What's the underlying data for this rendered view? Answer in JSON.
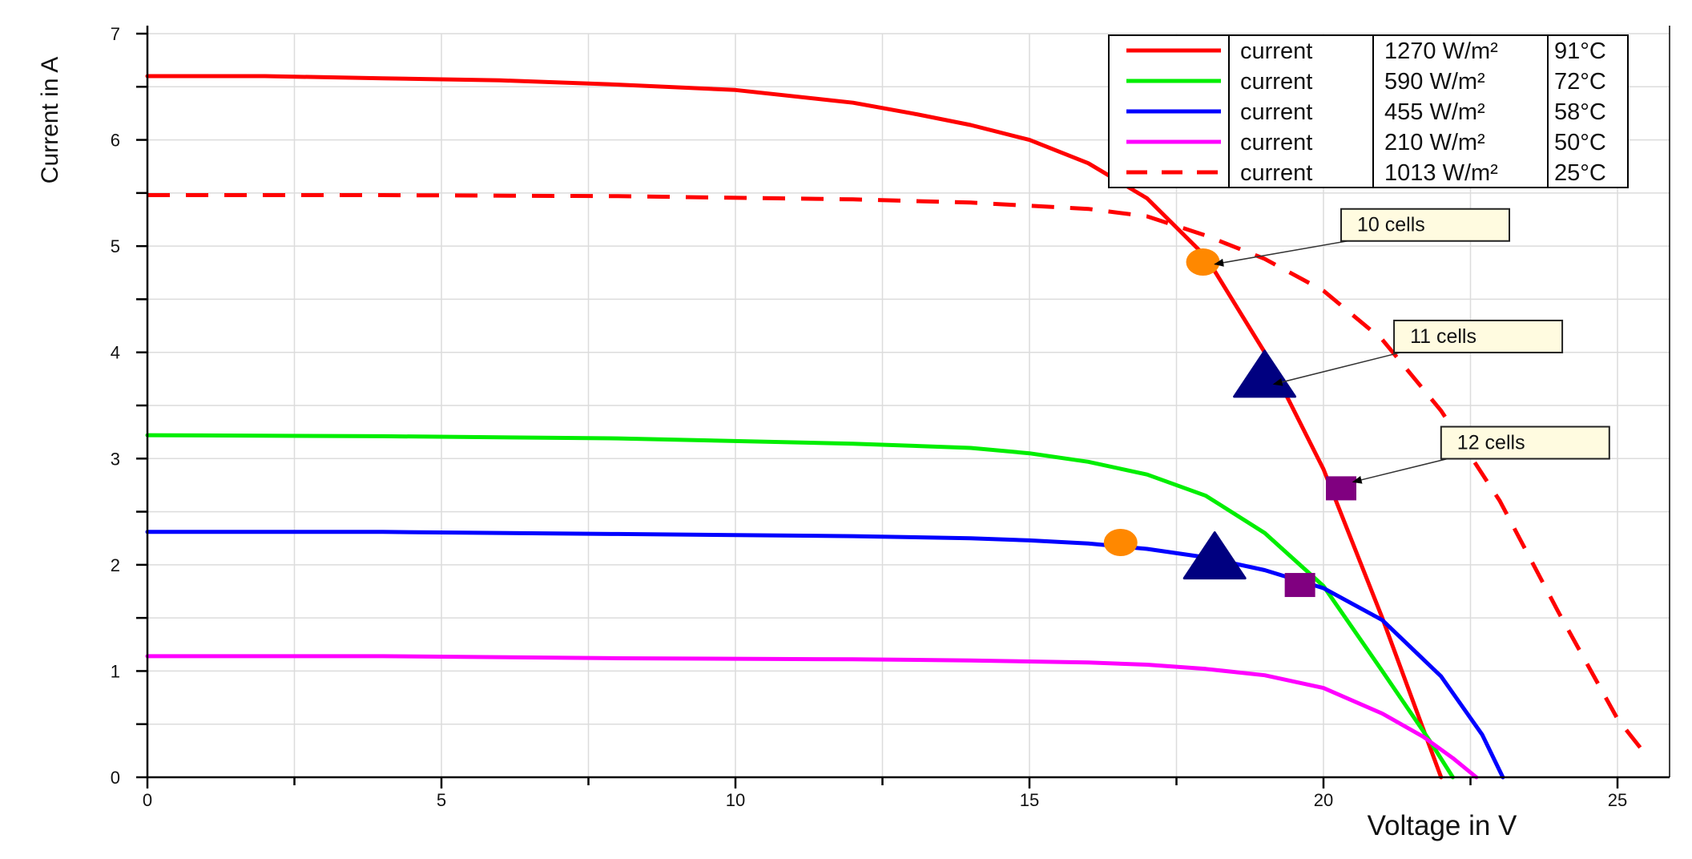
{
  "chart_data": {
    "type": "line",
    "xlabel": "Voltage in V",
    "ylabel": "Current in A",
    "xlim": [
      0,
      26
    ],
    "ylim": [
      0,
      7
    ],
    "x_ticks": [
      0,
      5,
      10,
      15,
      20,
      25
    ],
    "y_ticks": [
      0,
      1,
      2,
      3,
      4,
      5,
      6,
      7
    ],
    "grid": true,
    "legend_position": "top-right",
    "series": [
      {
        "name": "current",
        "irradiance": "1270 W/m²",
        "temperature": "91°C",
        "color": "#ff0000",
        "dash": "solid",
        "x": [
          0,
          2,
          4,
          6,
          8,
          10,
          12,
          13,
          14,
          15,
          16,
          17,
          18,
          19,
          20,
          21,
          21.6,
          22
        ],
        "y": [
          6.6,
          6.6,
          6.58,
          6.56,
          6.52,
          6.47,
          6.35,
          6.25,
          6.14,
          6.0,
          5.78,
          5.45,
          4.9,
          4.0,
          2.9,
          1.5,
          0.6,
          0.0
        ]
      },
      {
        "name": "current",
        "irradiance": "590 W/m²",
        "temperature": "72°C",
        "color": "#00ee00",
        "dash": "solid",
        "x": [
          0,
          4,
          8,
          12,
          14,
          15,
          16,
          17,
          18,
          19,
          20,
          21,
          21.8,
          22.2
        ],
        "y": [
          3.22,
          3.21,
          3.19,
          3.14,
          3.1,
          3.05,
          2.97,
          2.85,
          2.65,
          2.3,
          1.8,
          1.0,
          0.35,
          0.0
        ]
      },
      {
        "name": "current",
        "irradiance": "455 W/m²",
        "temperature": "58°C",
        "color": "#0000ff",
        "dash": "solid",
        "x": [
          0,
          4,
          8,
          12,
          14,
          15,
          16,
          17,
          18,
          19,
          20,
          21,
          22,
          22.7,
          23.05
        ],
        "y": [
          2.31,
          2.31,
          2.29,
          2.27,
          2.25,
          2.23,
          2.2,
          2.15,
          2.07,
          1.95,
          1.78,
          1.48,
          0.95,
          0.4,
          0.0
        ]
      },
      {
        "name": "current",
        "irradiance": "210 W/m²",
        "temperature": "50°C",
        "color": "#ff00ff",
        "dash": "solid",
        "x": [
          0,
          4,
          8,
          12,
          14,
          16,
          17,
          18,
          19,
          20,
          21,
          21.7,
          22.2,
          22.6
        ],
        "y": [
          1.14,
          1.14,
          1.12,
          1.11,
          1.1,
          1.08,
          1.06,
          1.02,
          0.96,
          0.84,
          0.6,
          0.38,
          0.18,
          0.0
        ]
      },
      {
        "name": "current",
        "irradiance": "1013 W/m²",
        "temperature": "25°C",
        "color": "#ff0000",
        "dash": "dashed",
        "x": [
          0,
          4,
          8,
          12,
          14,
          16,
          17,
          18,
          19,
          20,
          21,
          22,
          23,
          24,
          25,
          25.5
        ],
        "y": [
          5.48,
          5.48,
          5.47,
          5.44,
          5.41,
          5.35,
          5.28,
          5.1,
          4.88,
          4.58,
          4.12,
          3.45,
          2.6,
          1.55,
          0.55,
          0.2
        ]
      }
    ],
    "markers": [
      {
        "shape": "circle",
        "color": "#ff8800",
        "x": 17.95,
        "y": 4.85
      },
      {
        "shape": "triangle",
        "color": "#000080",
        "x": 19.0,
        "y": 3.77
      },
      {
        "shape": "square",
        "color": "#800080",
        "x": 20.3,
        "y": 2.72
      },
      {
        "shape": "circle",
        "color": "#ff8800",
        "x": 16.55,
        "y": 2.21
      },
      {
        "shape": "triangle",
        "color": "#000080",
        "x": 18.15,
        "y": 2.06
      },
      {
        "shape": "square",
        "color": "#800080",
        "x": 19.6,
        "y": 1.81
      }
    ],
    "annotations": [
      {
        "text": "10 cells",
        "box_x": 20.3,
        "box_y": 5.35,
        "arrow_to_x": 18.15,
        "arrow_to_y": 4.83
      },
      {
        "text": "11 cells",
        "box_x": 21.2,
        "box_y": 4.3,
        "arrow_to_x": 19.15,
        "arrow_to_y": 3.7
      },
      {
        "text": "12 cells",
        "box_x": 22.0,
        "box_y": 3.3,
        "arrow_to_x": 20.5,
        "arrow_to_y": 2.78
      }
    ]
  }
}
